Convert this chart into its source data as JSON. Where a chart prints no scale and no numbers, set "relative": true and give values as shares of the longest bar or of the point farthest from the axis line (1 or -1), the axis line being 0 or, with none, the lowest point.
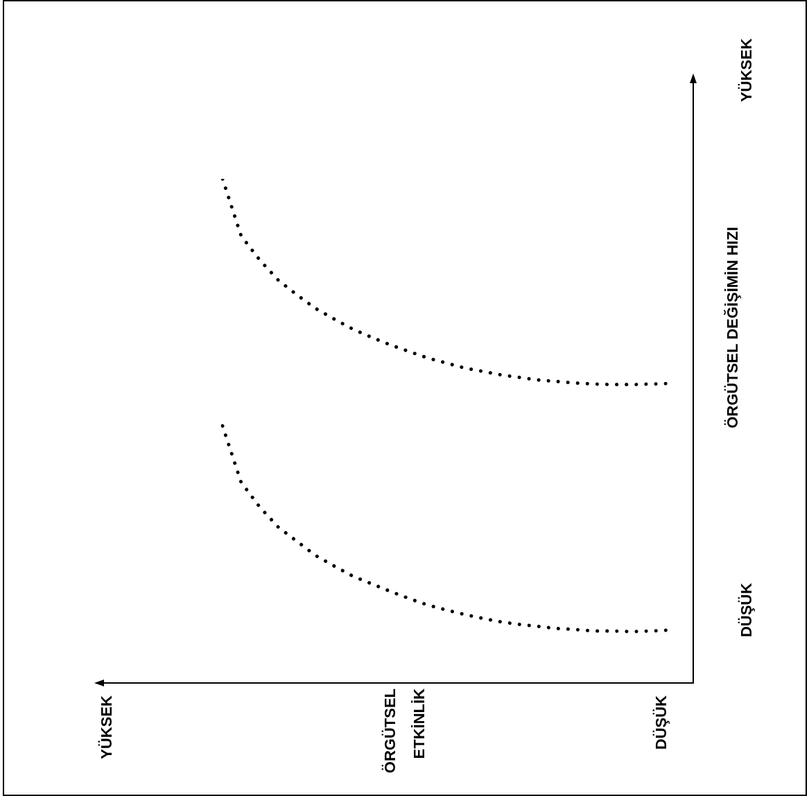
{
  "chart_data": {
    "type": "line",
    "relative": true,
    "ylabel": "ÖRGÜTSEL DEĞİŞİMİN HIZI",
    "annotations": [
      "DÜŞÜK",
      "YÜKSEK",
      "DÜŞÜK",
      "YÜKSEK",
      "ÖRGÜTSEL ETKİNLİK"
    ],
    "line_style": "dotted",
    "marker": "none",
    "categories": [
      null,
      null,
      null,
      null,
      null,
      null,
      null,
      null,
      null,
      null,
      null,
      null,
      null,
      null,
      null,
      null,
      null,
      null,
      null,
      null,
      null,
      null,
      null,
      null,
      null
    ],
    "series": [
      {
        "color": "#000000",
        "values": [
          1,
          0.887,
          0.839,
          0.799,
          0.77,
          0.743,
          0.722,
          0.702,
          0.686,
          0.671,
          0.658,
          0.645,
          0.635,
          0.625,
          0.618,
          0.611,
          0.606,
          0.601,
          0.598,
          0.595,
          0.593,
          0.592,
          0.592,
          0.593,
          0.594
        ]
      },
      {
        "color": "#000000",
        "values": [
          0.51,
          0.398,
          0.349,
          0.309,
          0.281,
          0.253,
          0.232,
          0.212,
          0.197,
          0.182,
          0.168,
          0.155,
          0.145,
          0.136,
          0.128,
          0.121,
          0.116,
          0.112,
          0.108,
          0.106,
          0.103,
          0.103,
          0.102,
          0.103,
          0.105
        ]
      }
    ]
  }
}
